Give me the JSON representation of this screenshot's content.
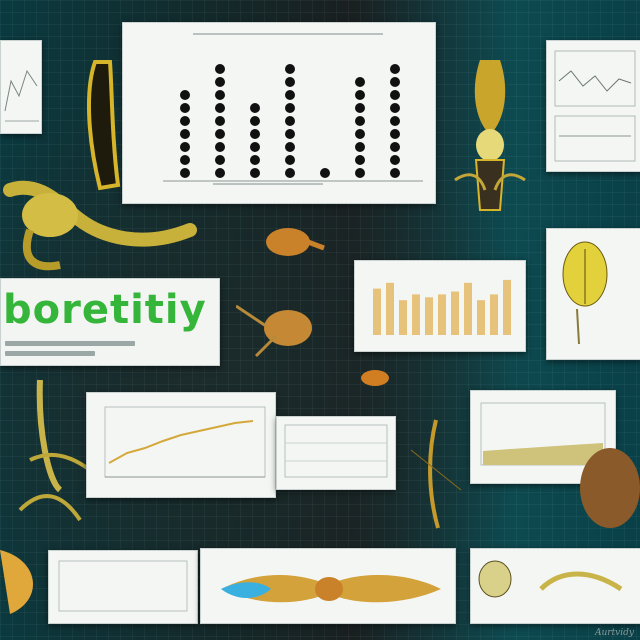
{
  "headline": "boretitiy",
  "signature": "Aurtvidy",
  "bar_chart": {
    "values": [
      7,
      9,
      6,
      9,
      1,
      8,
      9
    ]
  },
  "colors": {
    "accent_green": "#35b53a",
    "specimen_yellow": "#d9c23a",
    "specimen_orange": "#c9812a",
    "panel_bg": "#f4f6f4",
    "teal_bg": "#0e4a52"
  },
  "icons": [
    "insect-specimen-icon",
    "skeleton-icon",
    "beetle-icon",
    "wing-icon"
  ]
}
